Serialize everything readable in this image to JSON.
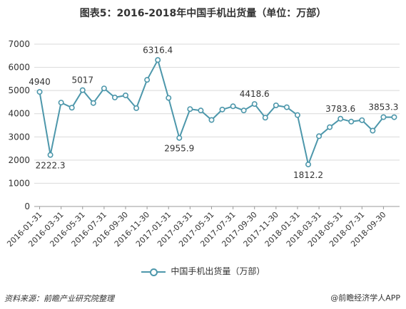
{
  "title": "图表5：2016-2018年中国手机出货量（单位：万部）",
  "source": "资料来源：前瞻产业研究院整理",
  "brand": "@前瞻经济学人APP",
  "colors": {
    "line": "#4d97ab",
    "grid": "#d9d9d9",
    "axis": "#999999"
  },
  "chart_data": {
    "type": "line",
    "ylim": [
      0,
      7000
    ],
    "yticks": [
      0,
      1000,
      2000,
      3000,
      4000,
      5000,
      6000,
      7000
    ],
    "xtick_labels": [
      "2016-01-31",
      "2016-03-31",
      "2016-05-31",
      "2016-07-31",
      "2016-09-30",
      "2016-11-30",
      "2017-01-31",
      "2017-03-31",
      "2017-05-31",
      "2017-07-31",
      "2017-09-30",
      "2017-11-30",
      "2018-01-31",
      "2018-03-31",
      "2018-05-31",
      "2018-07-31",
      "2018-09-30"
    ],
    "x": [
      "2016-01-31",
      "2016-02-29",
      "2016-03-31",
      "2016-04-30",
      "2016-05-31",
      "2016-06-30",
      "2016-07-31",
      "2016-08-31",
      "2016-09-30",
      "2016-10-31",
      "2016-11-30",
      "2016-12-31",
      "2017-01-31",
      "2017-02-28",
      "2017-03-31",
      "2017-04-30",
      "2017-05-31",
      "2017-06-30",
      "2017-07-31",
      "2017-08-31",
      "2017-09-30",
      "2017-10-31",
      "2017-11-30",
      "2017-12-31",
      "2018-01-31",
      "2018-02-28",
      "2018-03-31",
      "2018-04-30",
      "2018-05-31",
      "2018-06-30",
      "2018-07-31",
      "2018-08-31",
      "2018-09-30",
      "2018-10-31"
    ],
    "series": [
      {
        "name": "中国手机出货量（万部）",
        "values": [
          4940,
          2222.3,
          4480,
          4260,
          5017,
          4460,
          5090,
          4700,
          4790,
          4240,
          5460,
          6316.4,
          4680,
          2955.9,
          4200,
          4140,
          3730,
          4180,
          4320,
          4140,
          4418.6,
          3830,
          4360,
          4280,
          3940,
          1812.2,
          3030,
          3420,
          3783.6,
          3660,
          3720,
          3270,
          3853.3,
          3850
        ]
      }
    ],
    "data_labels": [
      {
        "index": 0,
        "text": "4940",
        "pos": "above"
      },
      {
        "index": 1,
        "text": "2222.3",
        "pos": "below"
      },
      {
        "index": 4,
        "text": "5017",
        "pos": "above"
      },
      {
        "index": 11,
        "text": "6316.4",
        "pos": "above"
      },
      {
        "index": 13,
        "text": "2955.9",
        "pos": "below"
      },
      {
        "index": 20,
        "text": "4418.6",
        "pos": "above"
      },
      {
        "index": 25,
        "text": "1812.2",
        "pos": "below"
      },
      {
        "index": 28,
        "text": "3783.6",
        "pos": "above"
      },
      {
        "index": 32,
        "text": "3853.3",
        "pos": "above"
      }
    ],
    "legend_position": "bottom"
  }
}
